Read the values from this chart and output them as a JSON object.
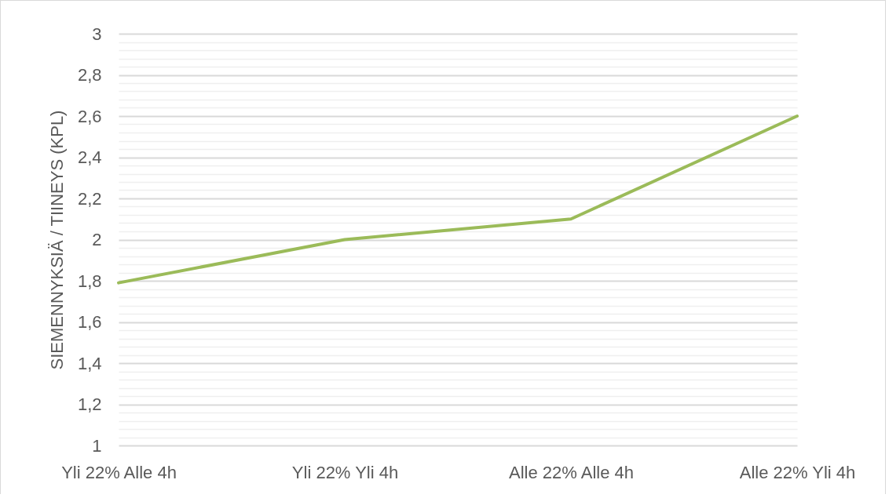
{
  "chart_data": {
    "type": "line",
    "ylabel": "SIEMENNYKSIÄ / TIINEYS (KPL)",
    "categories": [
      "Yli 22% Alle 4h",
      "Yli 22% Yli 4h",
      "Alle 22% Alle 4h",
      "Alle 22% Yli 4h"
    ],
    "series": [
      {
        "color": "#9bbb59",
        "values": [
          1.79,
          2.0,
          2.1,
          2.6
        ]
      }
    ],
    "ylim": [
      1,
      3
    ],
    "yticks": [
      1,
      {
        "value": 1.04,
        "label": null
      },
      {
        "value": 1.08,
        "label": null
      },
      {
        "value": 1.12,
        "label": null
      },
      {
        "value": 1.16,
        "label": null
      },
      {
        "value": 1.2,
        "label": "1,2"
      },
      {
        "value": 1.24,
        "label": null
      },
      {
        "value": 1.28,
        "label": null
      },
      {
        "value": 1.32,
        "label": null
      },
      {
        "value": 1.36,
        "label": null
      },
      {
        "value": 1.4,
        "label": "1,4"
      },
      {
        "value": 1.44,
        "label": null
      },
      {
        "value": 1.48,
        "label": null
      },
      {
        "value": 1.52,
        "label": null
      },
      {
        "value": 1.56,
        "label": null
      },
      {
        "value": 1.6,
        "label": "1,6"
      },
      {
        "value": 1.64,
        "label": null
      },
      {
        "value": 1.68,
        "label": null
      },
      {
        "value": 1.72,
        "label": null
      },
      {
        "value": 1.76,
        "label": null
      },
      {
        "value": 1.8,
        "label": "1,8"
      },
      {
        "value": 1.84,
        "label": null
      },
      {
        "value": 1.88,
        "label": null
      },
      {
        "value": 1.92,
        "label": null
      },
      {
        "value": 1.96,
        "label": null
      },
      2,
      {
        "value": 2.04,
        "label": null
      },
      {
        "value": 2.08,
        "label": null
      },
      {
        "value": 2.12,
        "label": null
      },
      {
        "value": 2.16,
        "label": null
      },
      {
        "value": 2.2,
        "label": "2,2"
      },
      {
        "value": 2.24,
        "label": null
      },
      {
        "value": 2.28,
        "label": null
      },
      {
        "value": 2.32,
        "label": null
      },
      {
        "value": 2.36,
        "label": null
      },
      {
        "value": 2.4,
        "label": "2,4"
      },
      {
        "value": 2.44,
        "label": null
      },
      {
        "value": 2.48,
        "label": null
      },
      {
        "value": 2.52,
        "label": null
      },
      {
        "value": 2.56,
        "label": null
      },
      {
        "value": 2.6,
        "label": "2,6"
      },
      {
        "value": 2.64,
        "label": null
      },
      {
        "value": 2.68,
        "label": null
      },
      {
        "value": 2.72,
        "label": null
      },
      {
        "value": 2.76,
        "label": null
      },
      {
        "value": 2.8,
        "label": "2,8"
      },
      {
        "value": 2.84,
        "label": null
      },
      {
        "value": 2.88,
        "label": null
      },
      {
        "value": 2.92,
        "label": null
      },
      {
        "value": 2.96,
        "label": null
      },
      3
    ],
    "grid": "y",
    "marker": "none",
    "line_style": "solid"
  }
}
